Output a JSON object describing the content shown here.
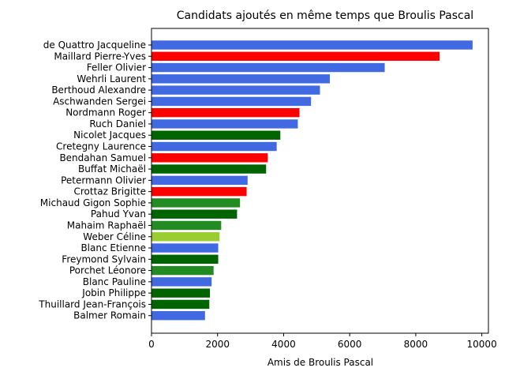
{
  "chart_data": {
    "type": "bar",
    "orientation": "horizontal",
    "title": "Candidats ajoutés en même temps que Broulis Pascal",
    "xlabel": "Amis de Broulis Pascal",
    "ylabel": "",
    "xlim": [
      0,
      10200
    ],
    "xticks": [
      "0",
      "2000",
      "4000",
      "6000",
      "8000",
      "10000"
    ],
    "grid": false,
    "categories": [
      "de Quattro Jacqueline",
      "Maillard Pierre-Yves",
      "Feller Olivier",
      "Wehrli Laurent",
      "Berthoud Alexandre",
      "Aschwanden Sergei",
      "Nordmann Roger",
      "Ruch Daniel",
      "Nicolet Jacques",
      "Cretegny Laurence",
      "Bendahan Samuel",
      "Buffat Michaël",
      "Petermann Olivier",
      "Crottaz Brigitte",
      "Michaud Gigon Sophie",
      "Pahud Yvan",
      "Mahaim Raphaël",
      "Weber Céline",
      "Blanc Etienne",
      "Freymond Sylvain",
      "Porchet Léonore",
      "Blanc Pauline",
      "Jobin Philippe",
      "Thuillard Jean-François",
      "Balmer Romain"
    ],
    "values": [
      9720,
      8720,
      7060,
      5400,
      5100,
      4830,
      4480,
      4430,
      3900,
      3790,
      3520,
      3470,
      2910,
      2880,
      2680,
      2590,
      2110,
      2060,
      2020,
      2020,
      1880,
      1820,
      1770,
      1750,
      1620
    ],
    "colors": [
      "#4169e1",
      "#ff0000",
      "#4169e1",
      "#4169e1",
      "#4169e1",
      "#4169e1",
      "#ff0000",
      "#4169e1",
      "#006400",
      "#4169e1",
      "#ff0000",
      "#006400",
      "#4169e1",
      "#ff0000",
      "#228b22",
      "#006400",
      "#228b22",
      "#9acd32",
      "#4169e1",
      "#006400",
      "#228b22",
      "#4169e1",
      "#006400",
      "#006400",
      "#4169e1"
    ]
  }
}
